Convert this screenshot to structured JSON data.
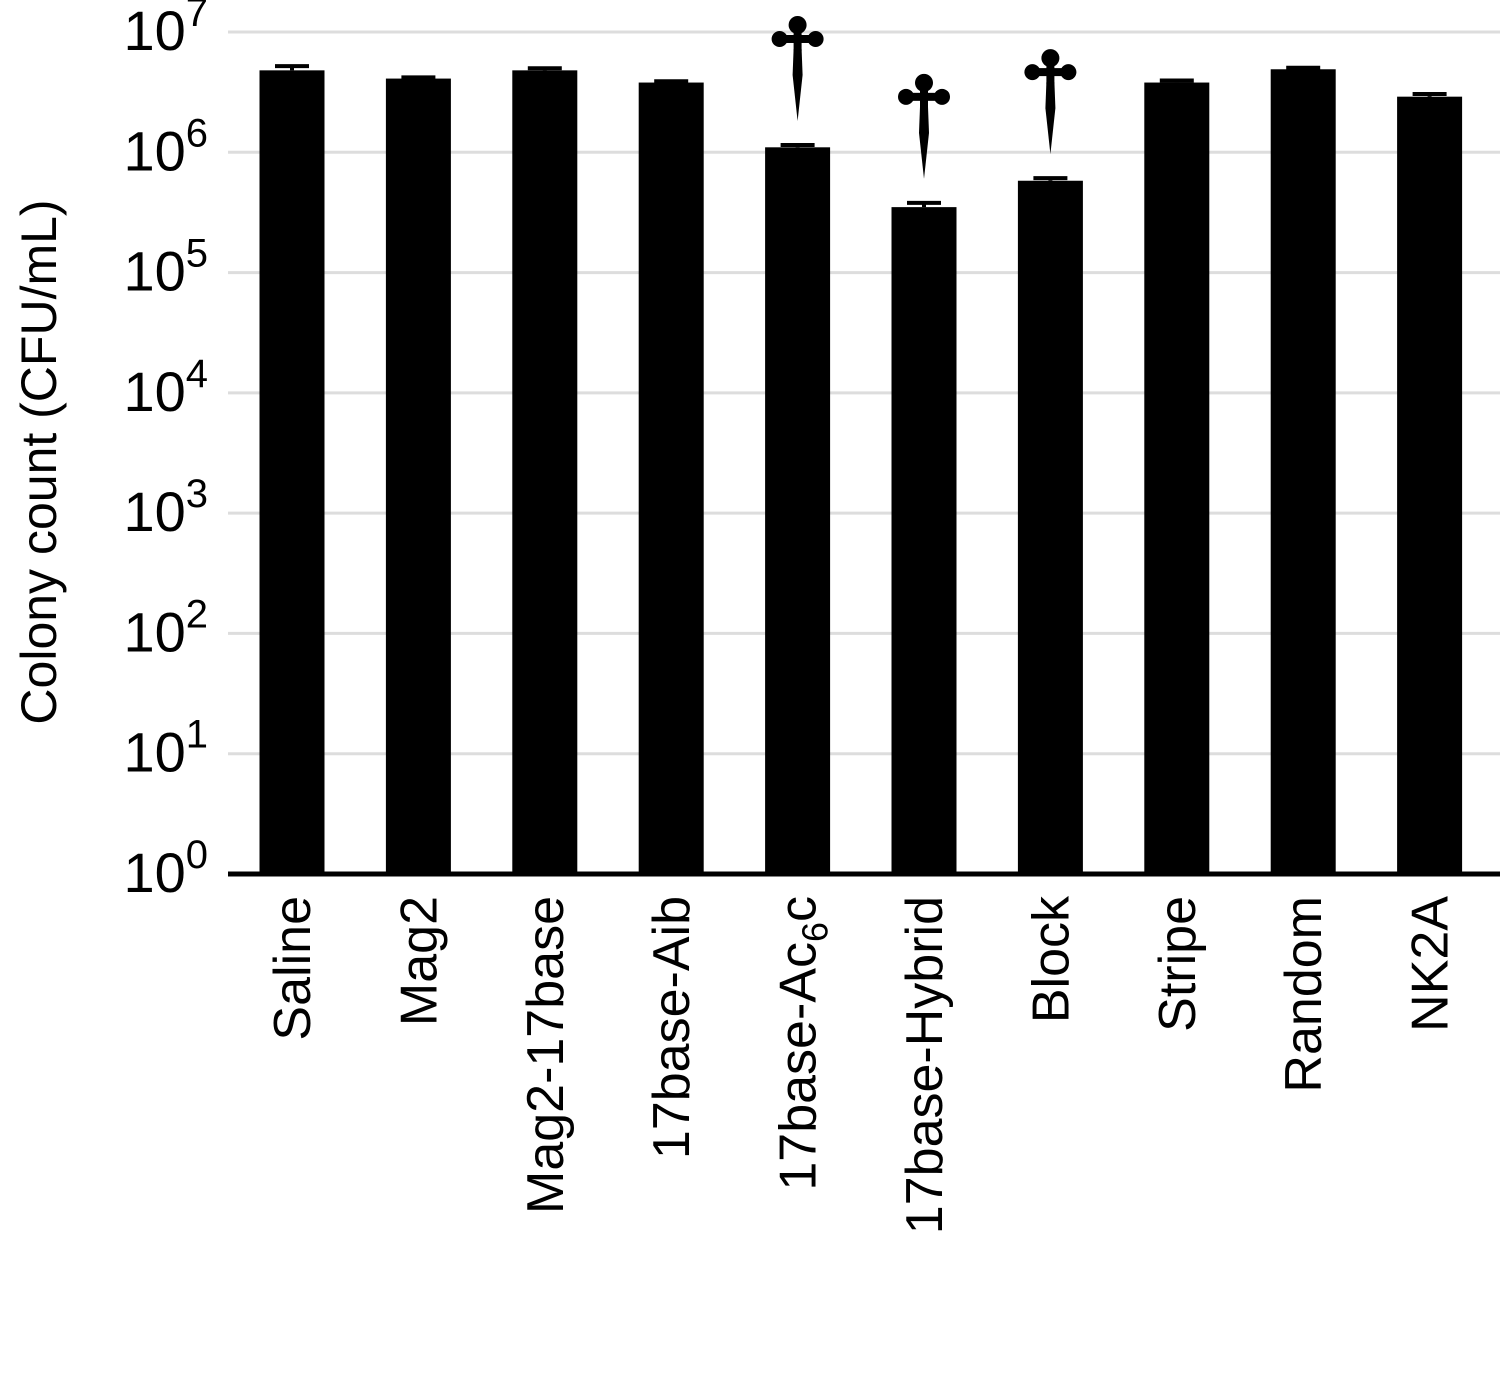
{
  "chart_data": {
    "type": "bar",
    "ylabel": "Colony count (CFU/mL)",
    "yscale": "log10",
    "ylim": [
      1,
      10000000
    ],
    "yticks": [
      {
        "value": 1,
        "base": "10",
        "exp": "0"
      },
      {
        "value": 10,
        "base": "10",
        "exp": "1"
      },
      {
        "value": 100,
        "base": "10",
        "exp": "2"
      },
      {
        "value": 1000,
        "base": "10",
        "exp": "3"
      },
      {
        "value": 10000,
        "base": "10",
        "exp": "4"
      },
      {
        "value": 100000,
        "base": "10",
        "exp": "5"
      },
      {
        "value": 1000000,
        "base": "10",
        "exp": "6"
      },
      {
        "value": 10000000,
        "base": "10",
        "exp": "7"
      }
    ],
    "grid": true,
    "bar_color": "#000000",
    "grid_color": "#dddddd",
    "categories": [
      {
        "label": "Saline"
      },
      {
        "label": "Mag2"
      },
      {
        "label": "Mag2-17base"
      },
      {
        "label": "17base-Aib"
      },
      {
        "label": "17base-Ac",
        "sub": "6",
        "suffix": "c"
      },
      {
        "label": "17base-Hybrid"
      },
      {
        "label": "Block"
      },
      {
        "label": "Stripe"
      },
      {
        "label": "Random"
      },
      {
        "label": "NK2A"
      }
    ],
    "values": [
      4800000,
      4100000,
      4800000,
      3800000,
      1100000,
      350000,
      580000,
      3800000,
      4900000,
      2900000
    ],
    "errors_upper": [
      5200000,
      4200000,
      5000000,
      3900000,
      1150000,
      380000,
      610000,
      3950000,
      5050000,
      3050000
    ],
    "significance": [
      {
        "index": 4,
        "symbol": "†"
      },
      {
        "index": 5,
        "symbol": "†"
      },
      {
        "index": 6,
        "symbol": "†"
      }
    ]
  }
}
